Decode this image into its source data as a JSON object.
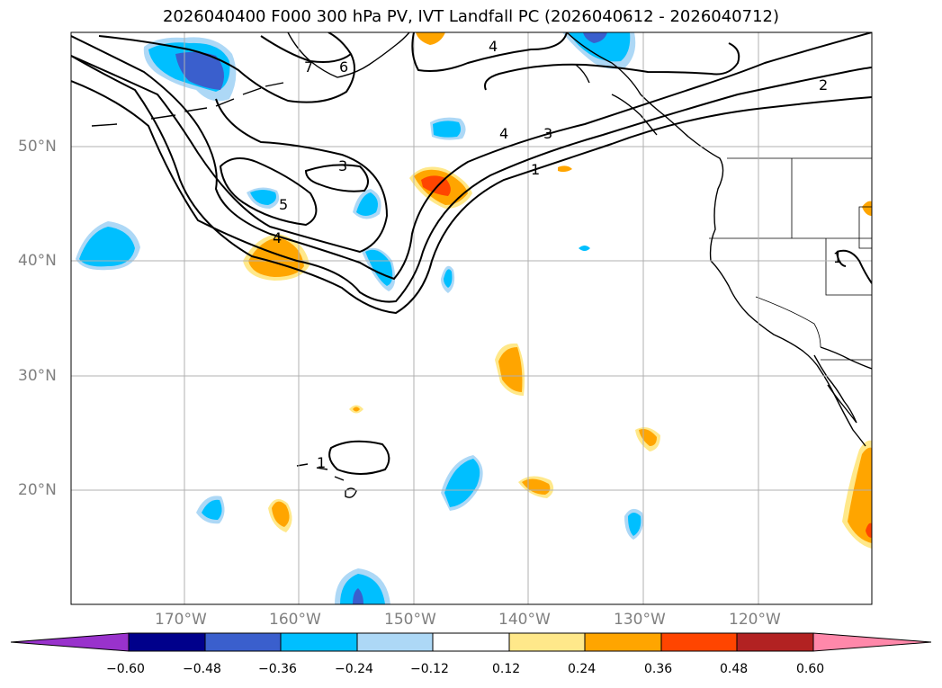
{
  "title": "2026040400 F000 300 hPa PV, IVT Landfall PC (2026040612 - 2026040712)",
  "map": {
    "latitudes": [
      {
        "value": 50,
        "label": "50°N"
      },
      {
        "value": 40,
        "label": "40°N"
      },
      {
        "value": 30,
        "label": "30°N"
      },
      {
        "value": 20,
        "label": "20°N"
      }
    ],
    "longitudes": [
      {
        "value": -170,
        "label": "170°W"
      },
      {
        "value": -160,
        "label": "160°W"
      },
      {
        "value": -150,
        "label": "150°W"
      },
      {
        "value": -140,
        "label": "140°W"
      },
      {
        "value": -130,
        "label": "130°W"
      },
      {
        "value": -120,
        "label": "120°W"
      }
    ],
    "pv_contour_labels": [
      "1",
      "2",
      "3",
      "4",
      "5",
      "6",
      "7"
    ],
    "land_color": "#ffffff",
    "grid_color": "#b0b0b0"
  },
  "colorbar": {
    "ticks": [
      "−0.60",
      "−0.48",
      "−0.36",
      "−0.24",
      "−0.12",
      "0.12",
      "0.24",
      "0.36",
      "0.48",
      "0.60"
    ],
    "colors": [
      "#9932cc",
      "#00008b",
      "#3a5fcd",
      "#00bfff",
      "#add8f6",
      "#ffffff",
      "#ffe88a",
      "#ffa500",
      "#ff4500",
      "#b22222",
      "#ff88aa"
    ]
  }
}
